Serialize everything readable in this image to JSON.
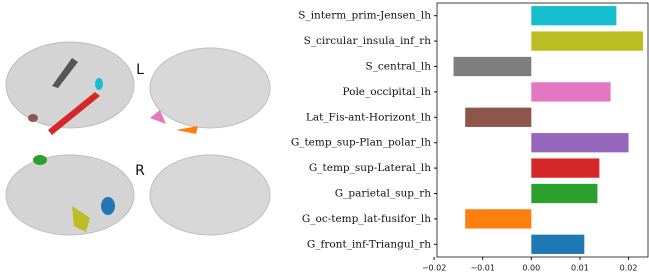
{
  "panel_labels": [
    "L",
    "R"
  ],
  "chart_data": {
    "type": "barh",
    "categories": [
      "S_interm_prim-Jensen_lh",
      "S_circular_insula_inf_rh",
      "S_central_lh",
      "Pole_occipital_lh",
      "Lat_Fis-ant-Horizont_lh",
      "G_temp_sup-Plan_polar_lh",
      "G_temp_sup-Lateral_lh",
      "G_parietal_sup_rh",
      "G_oc-temp_lat-fusifor_lh",
      "G_front_inf-Triangul_rh"
    ],
    "values": [
      0.0175,
      0.023,
      -0.016,
      0.0163,
      -0.0136,
      0.02,
      0.014,
      0.0136,
      -0.0136,
      0.0109
    ],
    "colors": [
      "#17becf",
      "#bcbd22",
      "#7f7f7f",
      "#e377c2",
      "#8c564b",
      "#9467bd",
      "#d62728",
      "#2ca02c",
      "#ff7f0e",
      "#1f77b4"
    ],
    "xlim": [
      -0.0194,
      0.024
    ],
    "xticks": [
      {
        "value": -0.02,
        "label": "−0.02"
      },
      {
        "value": -0.01,
        "label": "−0.01"
      },
      {
        "value": 0,
        "label": "0.00"
      },
      0.01,
      0.02
    ]
  }
}
